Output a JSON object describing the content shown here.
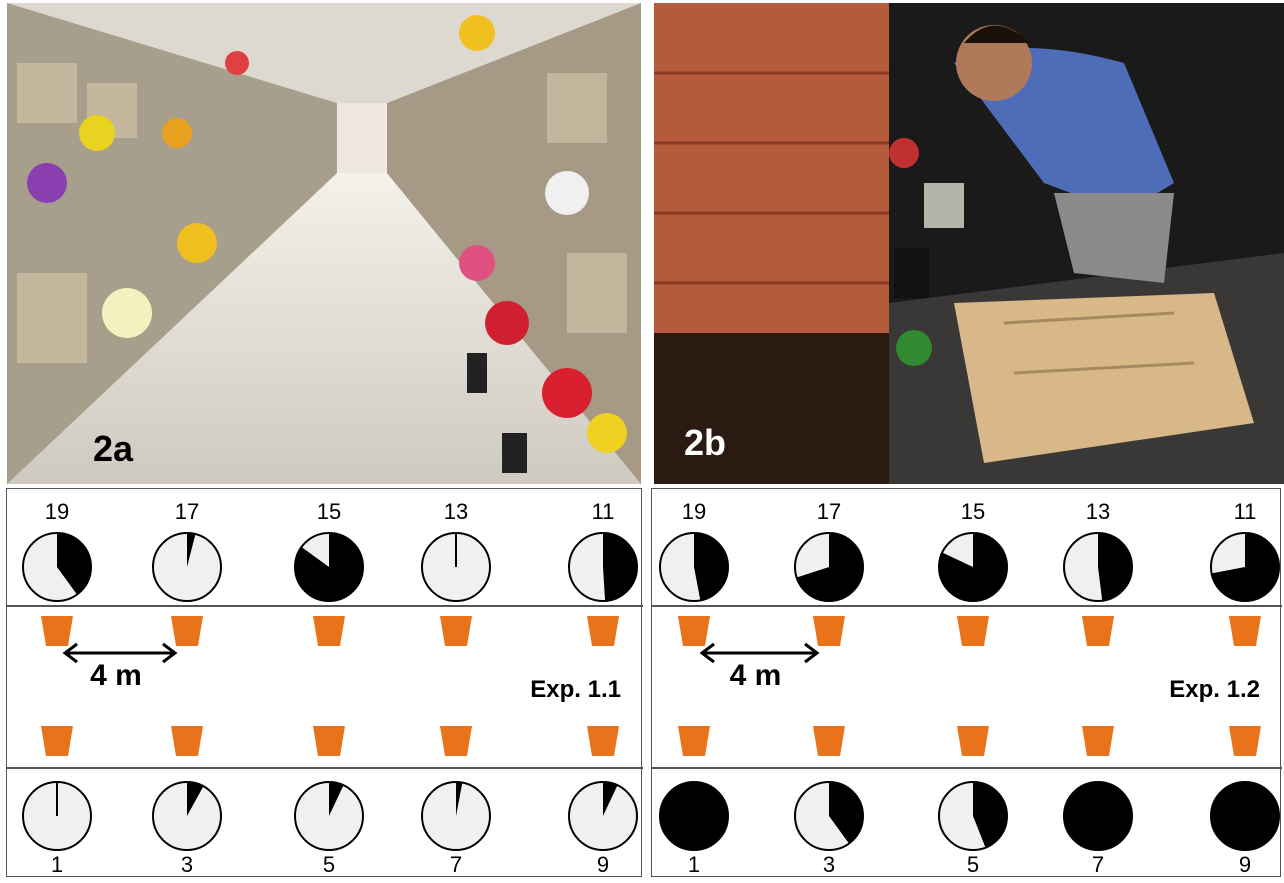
{
  "photos": [
    {
      "label": "2a",
      "alt": "cemetery niche corridor with flower vases"
    },
    {
      "label": "2b",
      "alt": "researcher placing ovitrap cups"
    }
  ],
  "experiments": [
    {
      "label": "Exp. 1.1",
      "distance_label": "4 m",
      "top_numbers": [
        "19",
        "17",
        "15",
        "13",
        "11"
      ],
      "top_fractions": [
        0.4,
        0.04,
        0.85,
        0.0,
        0.49
      ],
      "bottom_numbers": [
        "1",
        "3",
        "5",
        "7",
        "9"
      ],
      "bottom_fractions": [
        0.0,
        0.08,
        0.07,
        0.03,
        0.07
      ]
    },
    {
      "label": "Exp. 1.2",
      "distance_label": "4 m",
      "top_numbers": [
        "19",
        "17",
        "15",
        "13",
        "11"
      ],
      "top_fractions": [
        0.47,
        0.7,
        0.82,
        0.48,
        0.72
      ],
      "bottom_numbers": [
        "1",
        "3",
        "5",
        "7",
        "9"
      ],
      "bottom_fractions": [
        1.0,
        0.4,
        0.44,
        1.0,
        1.0
      ]
    }
  ],
  "colors": {
    "pot": "#E8731A",
    "pie_filled": "#000000",
    "pie_empty": "#F0F0F0"
  }
}
